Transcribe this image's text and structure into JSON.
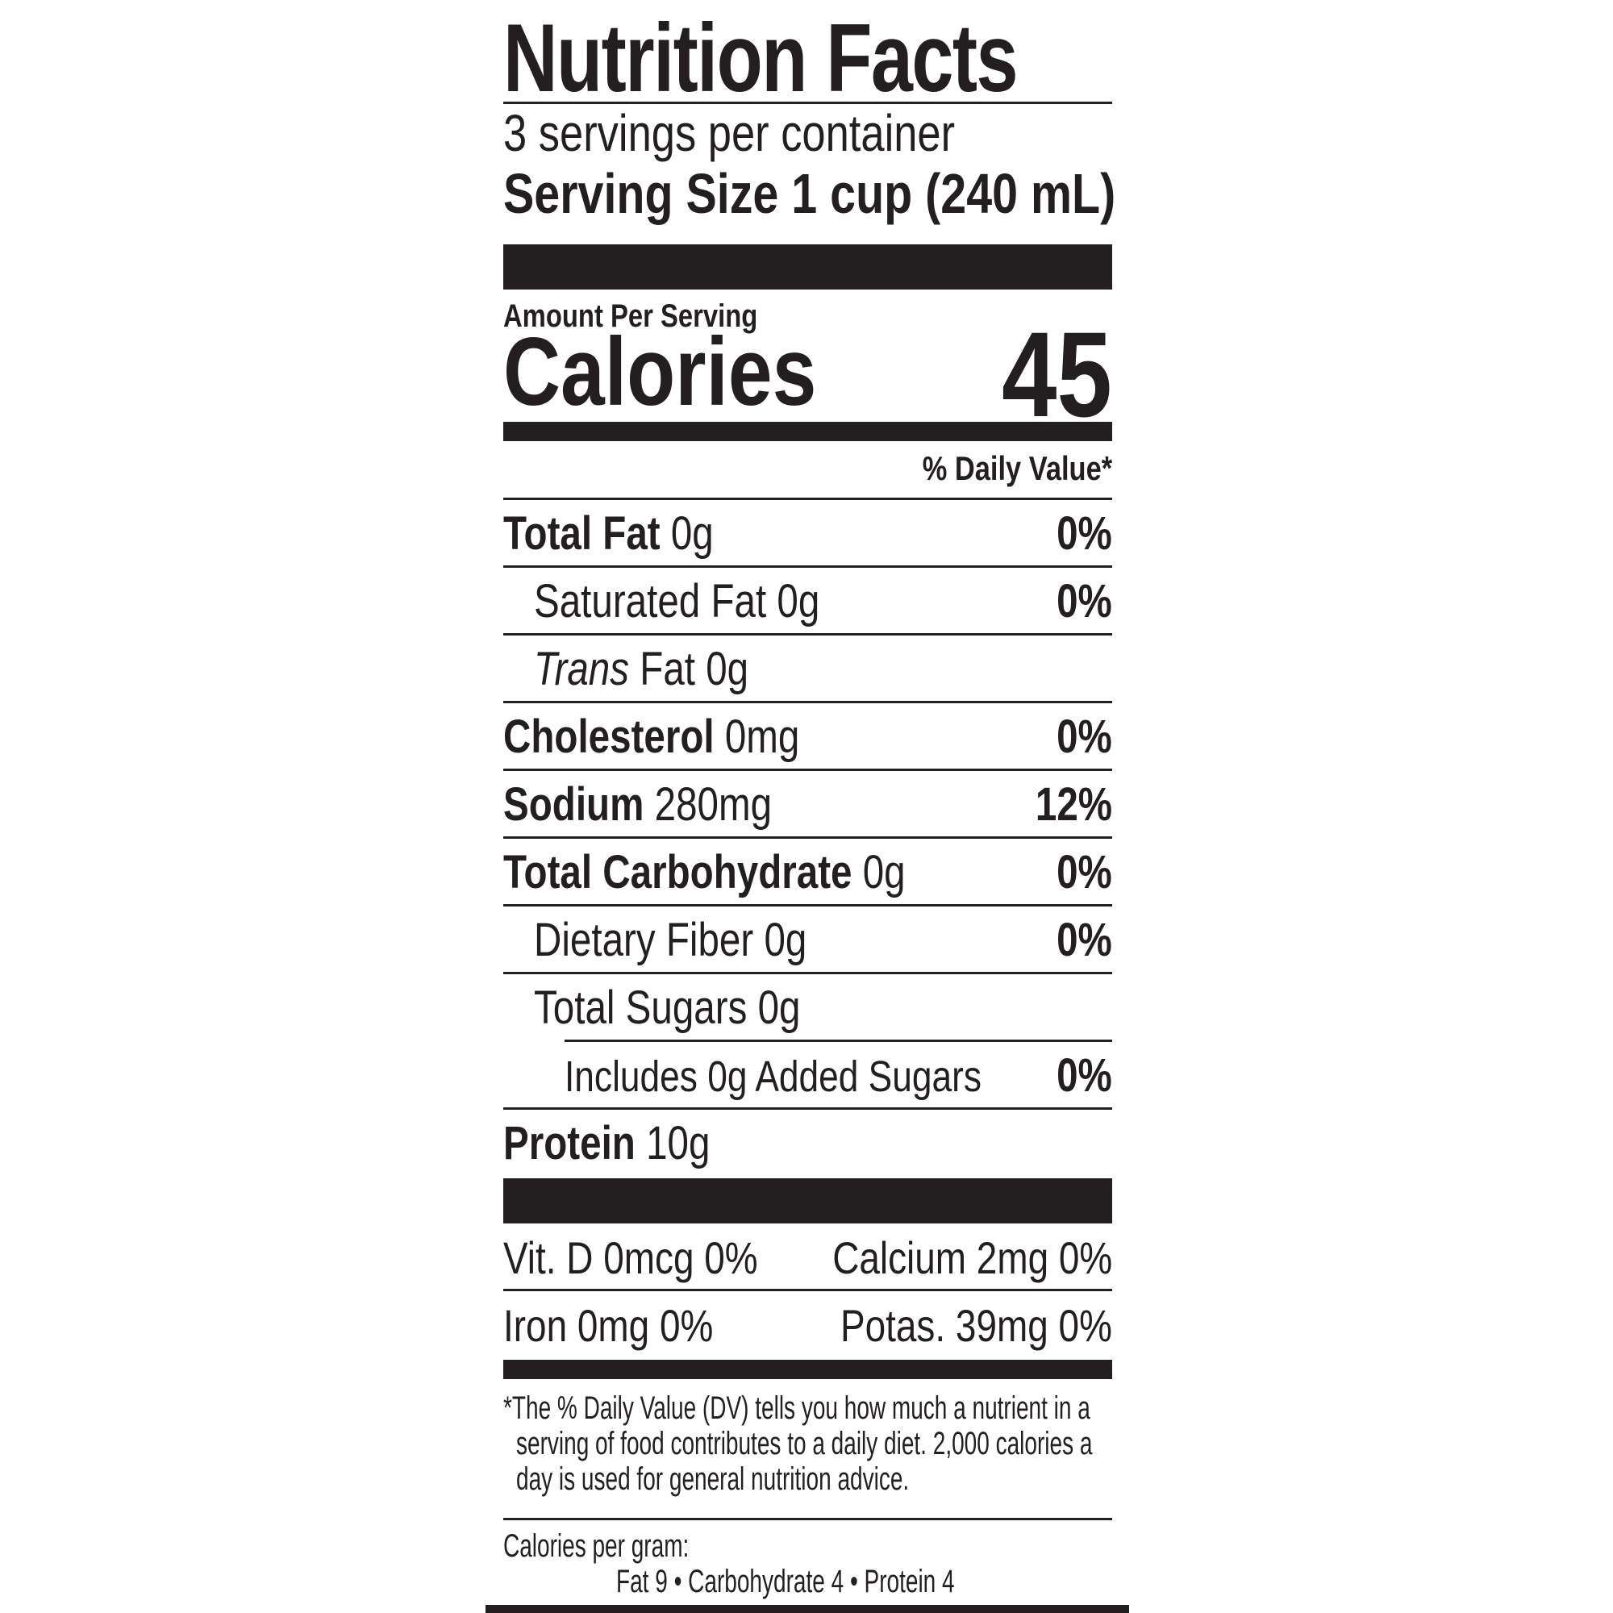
{
  "label": {
    "title": "Nutrition Facts",
    "servings_per_container": "3 servings per container",
    "serving_size": "Serving Size 1 cup (240 mL)",
    "amount_per_serving": "Amount Per Serving",
    "calories_label": "Calories",
    "calories_value": "45",
    "daily_value_header": "% Daily Value*",
    "nutrients": [
      {
        "name": "Total Fat",
        "amount": "0g",
        "dv": "0%"
      },
      {
        "name": "Saturated Fat",
        "amount": "0g",
        "dv": "0%"
      },
      {
        "name": "Trans",
        "name_rest": "Fat",
        "amount": "0g",
        "dv": ""
      },
      {
        "name": "Cholesterol",
        "amount": "0mg",
        "dv": "0%"
      },
      {
        "name": "Sodium",
        "amount": "280mg",
        "dv": "12%"
      },
      {
        "name": "Total Carbohydrate",
        "amount": "0g",
        "dv": "0%"
      },
      {
        "name": "Dietary Fiber",
        "amount": "0g",
        "dv": "0%"
      },
      {
        "name": "Total Sugars",
        "amount": "0g",
        "dv": ""
      },
      {
        "name": "Includes 0g Added Sugars",
        "amount": "",
        "dv": "0%"
      },
      {
        "name": "Protein",
        "amount": "10g",
        "dv": ""
      }
    ],
    "vitamins": [
      {
        "left": "Vit. D 0mcg 0%",
        "right": "Calcium 2mg 0%"
      },
      {
        "left": "Iron 0mg 0%",
        "right": "Potas. 39mg 0%"
      }
    ],
    "footnote": [
      "*The % Daily Value (DV) tells you how much a nutrient in a",
      "serving of food contributes to a daily diet. 2,000 calories a",
      "day is used for general nutrition advice."
    ],
    "calories_per_gram_label": "Calories per gram:",
    "calories_per_gram_values": "Fat 9  •  Carbohydrate 4  •  Protein 4"
  }
}
